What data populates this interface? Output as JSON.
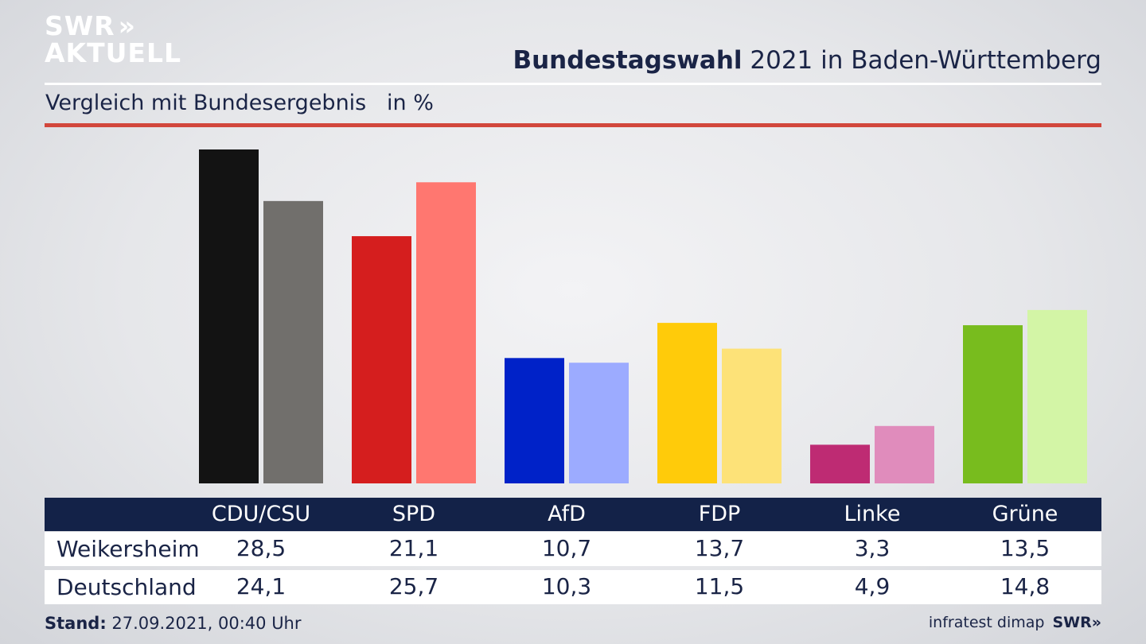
{
  "logo": {
    "line1": "SWR",
    "arrows": "»",
    "line2": "AKTUELL"
  },
  "header": {
    "title_bold": "Bundestagswahl",
    "title_rest": "2021 in Baden-Württemberg",
    "subtitle": "Vergleich mit Bundesergebnis   in %"
  },
  "colors": {
    "accent_line": "#d2473c",
    "table_header": "#132248"
  },
  "chart_data": {
    "type": "bar",
    "categories": [
      "CDU/CSU",
      "SPD",
      "AfD",
      "FDP",
      "Linke",
      "Grüne"
    ],
    "series": [
      {
        "name": "Weikersheim",
        "values": [
          28.5,
          21.1,
          10.7,
          13.7,
          3.3,
          13.5
        ],
        "colors": [
          "#131313",
          "#d51e1e",
          "#0022c8",
          "#ffcb0a",
          "#be2b73",
          "#78bc1e"
        ]
      },
      {
        "name": "Deutschland",
        "values": [
          24.1,
          25.7,
          10.3,
          11.5,
          4.9,
          14.8
        ],
        "colors": [
          "#716f6c",
          "#ff7770",
          "#9cabff",
          "#fde278",
          "#e08cbc",
          "#d3f5a6"
        ]
      }
    ],
    "ylim": [
      0,
      28.5
    ]
  },
  "table": {
    "headers": [
      "CDU/CSU",
      "SPD",
      "AfD",
      "FDP",
      "Linke",
      "Grüne"
    ],
    "rows": [
      {
        "label": "Weikersheim",
        "values": [
          "28,5",
          "21,1",
          "10,7",
          "13,7",
          "3,3",
          "13,5"
        ]
      },
      {
        "label": "Deutschland",
        "values": [
          "24,1",
          "25,7",
          "10,3",
          "11,5",
          "4,9",
          "14,8"
        ]
      }
    ]
  },
  "footer": {
    "stand_label": "Stand:",
    "stand_value": "27.09.2021, 00:40 Uhr",
    "source": "infratest dimap",
    "brand": "SWR»"
  }
}
